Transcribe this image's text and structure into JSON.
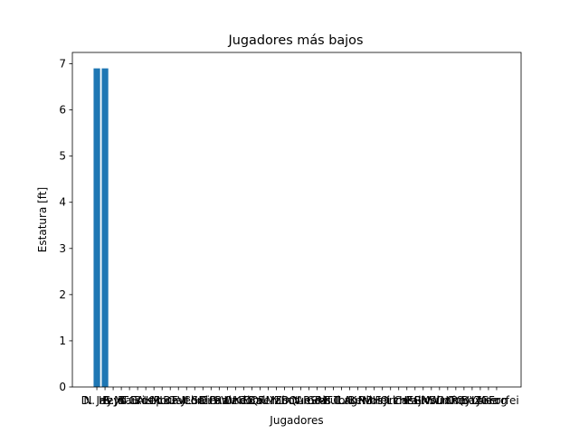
{
  "chart_data": {
    "type": "bar",
    "title": "Jugadores más bajos",
    "xlabel": "Jugadores",
    "ylabel": "Estatura [ft]",
    "ylim": [
      0,
      7.245
    ],
    "yticks": [
      0,
      1,
      2,
      3,
      4,
      5,
      6,
      7
    ],
    "grid": false,
    "categories": [
      "D. Jay",
      "N. Heyo",
      "P. Jo",
      "S. Bau",
      "M. Eri",
      "T. Ros",
      "C. Lep",
      "A. Mor",
      "K. Lua",
      "R. Gar",
      "B. Vel",
      "F. Cor",
      "J. Sal",
      "L. Dim",
      "H. Paz",
      "E. Ruiz",
      "G. Ond",
      "V. Kel",
      "W. Tom",
      "I. Bal",
      "O. Fen",
      "Q. Mar",
      "U. Lin",
      "Y. Sot",
      "Z. Que",
      "D. Amo",
      "N. Gra",
      "P. Ris",
      "S. Ful",
      "M. Tor",
      "T. Lag",
      "C. Ber",
      "A. Nil",
      "K. Vos",
      "R. Hei",
      "B. Orz",
      "F. Lim",
      "J. Cas",
      "L. Paj",
      "H. Riv",
      "E. Mol",
      "G. Sun",
      "V. Dor",
      "W. Kim",
      "I. Rey",
      "O. Bay",
      "Q. Lor",
      "U. Mea",
      "Y. Gerg",
      "Z. Forfei"
    ],
    "values": [
      6.9,
      6.9,
      0,
      0,
      0,
      0,
      0,
      0,
      0,
      0,
      0,
      0,
      0,
      0,
      0,
      0,
      0,
      0,
      0,
      0,
      0,
      0,
      0,
      0,
      0,
      0,
      0,
      0,
      0,
      0,
      0,
      0,
      0,
      0,
      0,
      0,
      0,
      0,
      0,
      0,
      0,
      0,
      0,
      0,
      0,
      0,
      0,
      0,
      0,
      0
    ],
    "bar_color": "#1f77b4"
  }
}
